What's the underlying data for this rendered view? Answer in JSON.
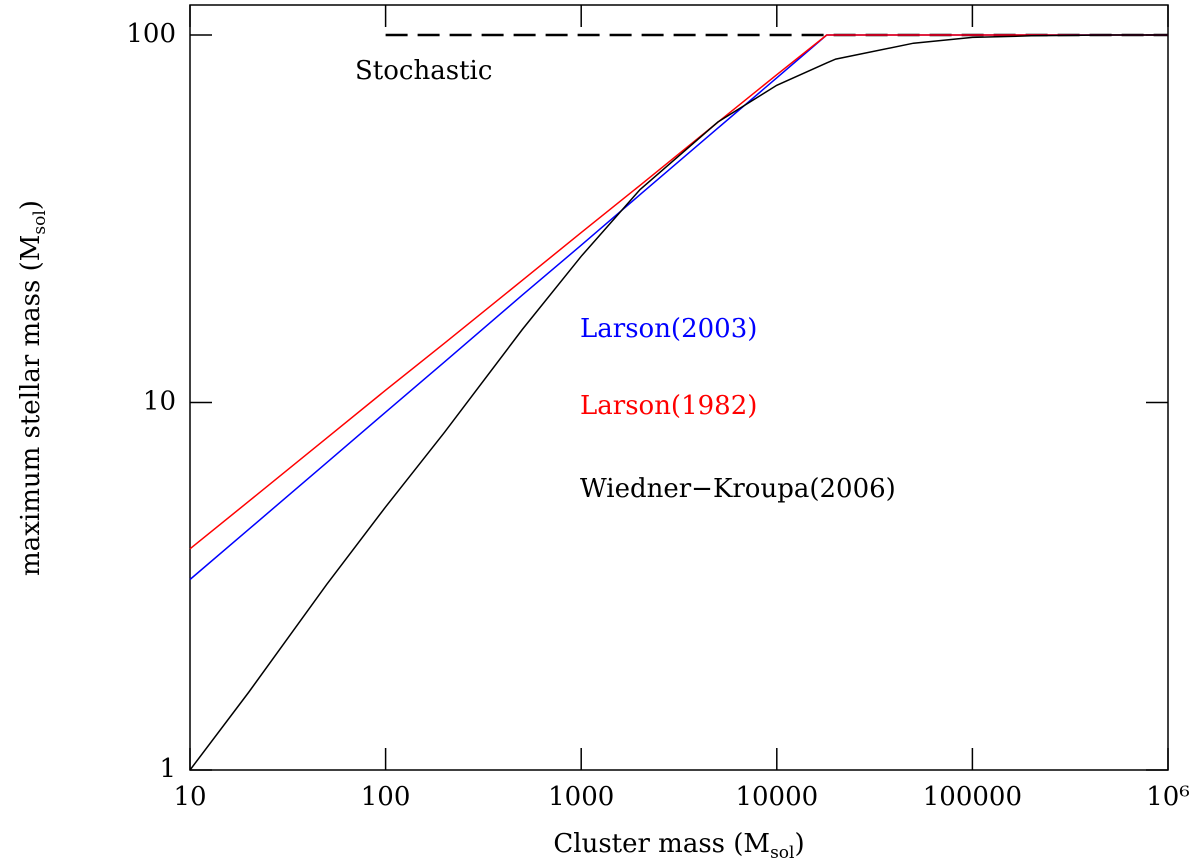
{
  "chart_data": {
    "type": "line",
    "x_label": {
      "text": "Cluster mass (M",
      "sub": "sol",
      "end": ")"
    },
    "y_label": {
      "text": "maximum stellar mass (M",
      "sub": "sol",
      "end": ")"
    },
    "x": [
      10,
      20,
      50,
      100,
      200,
      500,
      1000,
      2000,
      5000,
      10000,
      18000,
      20000,
      50000,
      100000,
      200000,
      500000,
      1000000
    ],
    "series": [
      {
        "name": "Stochastic",
        "color": "#000000",
        "dashed": true,
        "values": [
          null,
          null,
          null,
          100,
          100,
          100,
          100,
          100,
          100,
          100,
          100,
          100,
          100,
          100,
          100,
          100,
          100
        ]
      },
      {
        "name": "Larson(2003)",
        "color": "#0000ff",
        "values": [
          3.3,
          4.52,
          6.86,
          9.41,
          12.9,
          19.6,
          26.8,
          36.8,
          55.8,
          76.5,
          100,
          100,
          100,
          100,
          100,
          100,
          100
        ]
      },
      {
        "name": "Larson(1982)",
        "color": "#ff0000",
        "values": [
          4.0,
          5.39,
          8.0,
          10.8,
          14.5,
          21.5,
          29.0,
          39.0,
          57.9,
          78.0,
          100,
          100,
          100,
          100,
          100,
          100,
          100
        ]
      },
      {
        "name": "Wiedner−Kroupa(2006)",
        "color": "#000000",
        "values": [
          1,
          1.63,
          3.2,
          5.2,
          8.3,
          15.8,
          25,
          38,
          58,
          73,
          84,
          86,
          95,
          98.5,
          99.5,
          100,
          100
        ]
      }
    ],
    "xlim": [
      10,
      1000000
    ],
    "ylim": [
      1,
      120.7
    ],
    "xlog": true,
    "ylog": true,
    "xticks": [
      10,
      100,
      1000,
      10000,
      100000,
      {
        "value": 1000000,
        "label": "10⁶"
      }
    ],
    "yticks": [
      1,
      10,
      100
    ]
  }
}
